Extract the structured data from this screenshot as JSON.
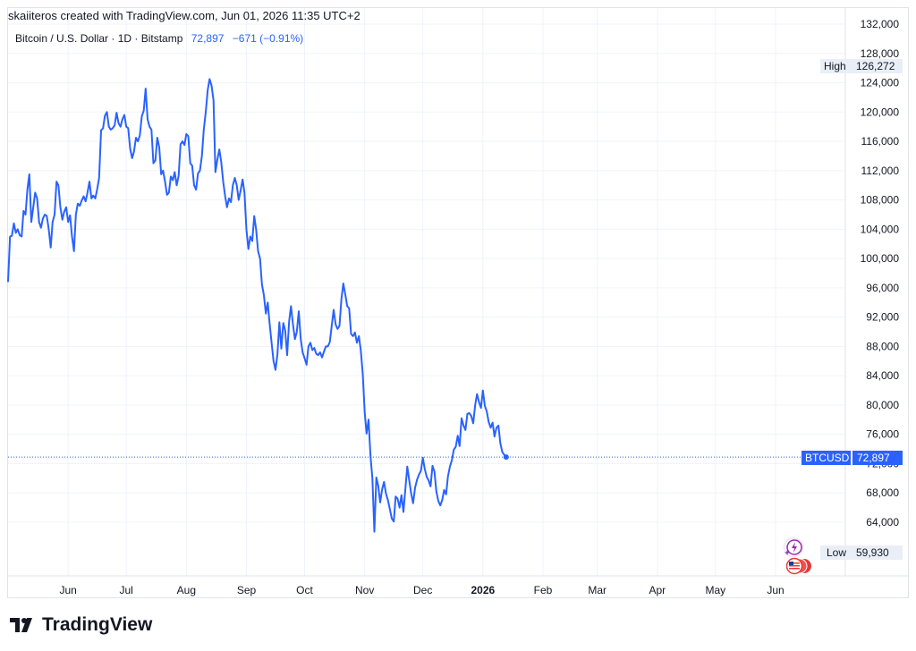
{
  "header": {
    "created_by": "skaiiteros created with TradingView.com, Jun 01, 2026 11:35 UTC+2",
    "symbol": "Bitcoin / U.S. Dollar · 1D · Bitstamp",
    "last_price": "72,897",
    "change": "−671 (−0.91%)"
  },
  "badges": {
    "high_label": "High",
    "high_value": "126,272",
    "low_label": "Low",
    "low_value": "59,930",
    "ticker": "BTCUSD",
    "ticker_value": "72,897"
  },
  "logo": {
    "text": "TradingView"
  },
  "colors": {
    "line": "#2962ff",
    "grid": "#f0f3fa",
    "axis_text": "#131722"
  },
  "icons": [
    "tradingview-logo-icon",
    "lightning-event-icon",
    "us-flag-event-icon"
  ],
  "chart_data": {
    "type": "line",
    "title": "Bitcoin / U.S. Dollar · 1D · Bitstamp",
    "xlabel": "",
    "ylabel": "",
    "ylim": [
      56000,
      133000
    ],
    "y_ticks": [
      "132,000",
      "128,000",
      "124,000",
      "120,000",
      "116,000",
      "112,000",
      "108,000",
      "104,000",
      "100,000",
      "96,000",
      "92,000",
      "88,000",
      "84,000",
      "80,000",
      "76,000",
      "72,000",
      "68,000",
      "64,000"
    ],
    "x_ticks": [
      {
        "label": "Jun",
        "day": 31
      },
      {
        "label": "Jul",
        "day": 61
      },
      {
        "label": "Aug",
        "day": 92
      },
      {
        "label": "Sep",
        "day": 123
      },
      {
        "label": "Oct",
        "day": 153
      },
      {
        "label": "Nov",
        "day": 184
      },
      {
        "label": "Dec",
        "day": 214
      },
      {
        "label": "2026",
        "day": 245
      },
      {
        "label": "Feb",
        "day": 276
      },
      {
        "label": "Mar",
        "day": 304
      },
      {
        "label": "Apr",
        "day": 335
      },
      {
        "label": "May",
        "day": 365
      },
      {
        "label": "Jun",
        "day": 396
      }
    ],
    "grid": true,
    "series": [
      {
        "values": [
          [
            0,
            96800
          ],
          [
            1,
            103000
          ],
          [
            2,
            103100
          ],
          [
            3,
            104800
          ],
          [
            4,
            103500
          ],
          [
            5,
            104000
          ],
          [
            6,
            103200
          ],
          [
            7,
            103000
          ],
          [
            8,
            106500
          ],
          [
            9,
            106000
          ],
          [
            10,
            109500
          ],
          [
            11,
            111500
          ],
          [
            12,
            105000
          ],
          [
            13,
            107000
          ],
          [
            14,
            109000
          ],
          [
            15,
            108200
          ],
          [
            16,
            105000
          ],
          [
            17,
            104200
          ],
          [
            18,
            105500
          ],
          [
            19,
            106000
          ],
          [
            20,
            105800
          ],
          [
            21,
            104000
          ],
          [
            22,
            101500
          ],
          [
            23,
            105000
          ],
          [
            24,
            106000
          ],
          [
            25,
            110500
          ],
          [
            26,
            110000
          ],
          [
            27,
            107000
          ],
          [
            28,
            105300
          ],
          [
            29,
            106400
          ],
          [
            30,
            107000
          ],
          [
            31,
            105000
          ],
          [
            32,
            105900
          ],
          [
            33,
            103000
          ],
          [
            34,
            101000
          ],
          [
            35,
            106000
          ],
          [
            36,
            107500
          ],
          [
            37,
            107200
          ],
          [
            38,
            107900
          ],
          [
            39,
            108500
          ],
          [
            40,
            107800
          ],
          [
            41,
            109000
          ],
          [
            42,
            110500
          ],
          [
            43,
            108200
          ],
          [
            44,
            108600
          ],
          [
            45,
            108200
          ],
          [
            46,
            109500
          ],
          [
            47,
            111000
          ],
          [
            48,
            117500
          ],
          [
            49,
            117800
          ],
          [
            50,
            119500
          ],
          [
            51,
            120000
          ],
          [
            52,
            118000
          ],
          [
            53,
            117600
          ],
          [
            54,
            117800
          ],
          [
            55,
            118200
          ],
          [
            56,
            119900
          ],
          [
            57,
            118500
          ],
          [
            58,
            118000
          ],
          [
            59,
            119000
          ],
          [
            60,
            119600
          ],
          [
            61,
            118000
          ],
          [
            62,
            117800
          ],
          [
            63,
            115000
          ],
          [
            64,
            113700
          ],
          [
            65,
            114600
          ],
          [
            66,
            116500
          ],
          [
            67,
            116000
          ],
          [
            68,
            116800
          ],
          [
            69,
            119400
          ],
          [
            70,
            120200
          ],
          [
            71,
            123200
          ],
          [
            72,
            119000
          ],
          [
            73,
            118000
          ],
          [
            74,
            117600
          ],
          [
            75,
            113000
          ],
          [
            76,
            113400
          ],
          [
            77,
            116500
          ],
          [
            78,
            115200
          ],
          [
            79,
            111500
          ],
          [
            80,
            112000
          ],
          [
            81,
            110500
          ],
          [
            82,
            108700
          ],
          [
            83,
            109000
          ],
          [
            84,
            111200
          ],
          [
            85,
            110700
          ],
          [
            86,
            111800
          ],
          [
            87,
            110000
          ],
          [
            88,
            111300
          ],
          [
            89,
            115600
          ],
          [
            90,
            116000
          ],
          [
            91,
            115500
          ],
          [
            92,
            117000
          ],
          [
            93,
            116700
          ],
          [
            94,
            113000
          ],
          [
            95,
            112700
          ],
          [
            96,
            110000
          ],
          [
            97,
            109400
          ],
          [
            98,
            111600
          ],
          [
            99,
            112000
          ],
          [
            100,
            114000
          ],
          [
            101,
            117600
          ],
          [
            102,
            120000
          ],
          [
            103,
            123000
          ],
          [
            104,
            124500
          ],
          [
            105,
            123600
          ],
          [
            106,
            121600
          ],
          [
            107,
            111800
          ],
          [
            108,
            113500
          ],
          [
            109,
            114900
          ],
          [
            110,
            113200
          ],
          [
            111,
            110500
          ],
          [
            112,
            108500
          ],
          [
            113,
            107000
          ],
          [
            114,
            108200
          ],
          [
            115,
            107700
          ],
          [
            116,
            110000
          ],
          [
            117,
            111000
          ],
          [
            118,
            110000
          ],
          [
            119,
            108000
          ],
          [
            120,
            109300
          ],
          [
            121,
            110800
          ],
          [
            122,
            109000
          ],
          [
            123,
            103900
          ],
          [
            124,
            101300
          ],
          [
            125,
            103000
          ],
          [
            126,
            102400
          ],
          [
            127,
            105800
          ],
          [
            128,
            104000
          ],
          [
            129,
            101000
          ],
          [
            130,
            100000
          ],
          [
            131,
            96500
          ],
          [
            132,
            95000
          ],
          [
            133,
            92500
          ],
          [
            134,
            94000
          ],
          [
            135,
            91000
          ],
          [
            136,
            88400
          ],
          [
            137,
            86000
          ],
          [
            138,
            84800
          ],
          [
            139,
            87000
          ],
          [
            140,
            91300
          ],
          [
            141,
            87700
          ],
          [
            142,
            91200
          ],
          [
            143,
            90200
          ],
          [
            144,
            86800
          ],
          [
            145,
            91400
          ],
          [
            146,
            93500
          ],
          [
            147,
            91000
          ],
          [
            148,
            89000
          ],
          [
            149,
            90000
          ],
          [
            150,
            92800
          ],
          [
            151,
            89000
          ],
          [
            152,
            87200
          ],
          [
            153,
            86400
          ],
          [
            154,
            85500
          ],
          [
            155,
            88000
          ],
          [
            156,
            88500
          ],
          [
            157,
            87500
          ],
          [
            158,
            87800
          ],
          [
            159,
            87000
          ],
          [
            160,
            86800
          ],
          [
            161,
            87200
          ],
          [
            162,
            86500
          ],
          [
            163,
            87300
          ],
          [
            164,
            88000
          ],
          [
            165,
            88000
          ],
          [
            166,
            88600
          ],
          [
            167,
            90800
          ],
          [
            168,
            93000
          ],
          [
            169,
            91000
          ],
          [
            170,
            90400
          ],
          [
            171,
            90800
          ],
          [
            172,
            94500
          ],
          [
            173,
            96600
          ],
          [
            174,
            95100
          ],
          [
            175,
            93500
          ],
          [
            176,
            93200
          ],
          [
            177,
            89700
          ],
          [
            178,
            89400
          ],
          [
            179,
            89900
          ],
          [
            180,
            88500
          ],
          [
            181,
            89400
          ],
          [
            182,
            87500
          ],
          [
            183,
            84300
          ],
          [
            184,
            79000
          ],
          [
            185,
            76100
          ],
          [
            186,
            78000
          ],
          [
            187,
            73000
          ],
          [
            188,
            70000
          ],
          [
            189,
            62700
          ],
          [
            190,
            70100
          ],
          [
            191,
            69000
          ],
          [
            192,
            66700
          ],
          [
            193,
            68500
          ],
          [
            194,
            69500
          ],
          [
            195,
            67900
          ],
          [
            196,
            67000
          ],
          [
            197,
            65800
          ],
          [
            198,
            64500
          ],
          [
            199,
            64100
          ],
          [
            200,
            67500
          ],
          [
            201,
            67200
          ],
          [
            202,
            66000
          ],
          [
            203,
            67700
          ],
          [
            204,
            65400
          ],
          [
            205,
            68600
          ],
          [
            206,
            71600
          ],
          [
            207,
            69700
          ],
          [
            208,
            67900
          ],
          [
            209,
            66600
          ],
          [
            210,
            68700
          ],
          [
            211,
            69800
          ],
          [
            212,
            70500
          ],
          [
            213,
            71000
          ],
          [
            214,
            72800
          ],
          [
            215,
            71300
          ],
          [
            216,
            70200
          ],
          [
            217,
            69700
          ],
          [
            218,
            68900
          ],
          [
            219,
            71700
          ],
          [
            220,
            70900
          ],
          [
            221,
            68200
          ],
          [
            222,
            66900
          ],
          [
            223,
            66300
          ],
          [
            224,
            67000
          ],
          [
            225,
            68400
          ],
          [
            226,
            67800
          ],
          [
            227,
            70300
          ],
          [
            228,
            71600
          ],
          [
            229,
            72500
          ],
          [
            230,
            73900
          ],
          [
            231,
            74300
          ],
          [
            232,
            75800
          ],
          [
            233,
            74400
          ],
          [
            234,
            78200
          ],
          [
            235,
            77200
          ],
          [
            236,
            76600
          ],
          [
            237,
            78800
          ],
          [
            238,
            78900
          ],
          [
            239,
            78500
          ],
          [
            240,
            77500
          ],
          [
            241,
            80000
          ],
          [
            242,
            81500
          ],
          [
            243,
            80400
          ],
          [
            244,
            79600
          ],
          [
            245,
            82000
          ],
          [
            246,
            79900
          ],
          [
            247,
            79100
          ],
          [
            248,
            77700
          ],
          [
            249,
            76900
          ],
          [
            250,
            77600
          ],
          [
            251,
            75700
          ],
          [
            252,
            76900
          ],
          [
            253,
            77200
          ],
          [
            254,
            74800
          ],
          [
            255,
            73600
          ],
          [
            256,
            73200
          ],
          [
            257,
            72900
          ]
        ]
      }
    ]
  }
}
